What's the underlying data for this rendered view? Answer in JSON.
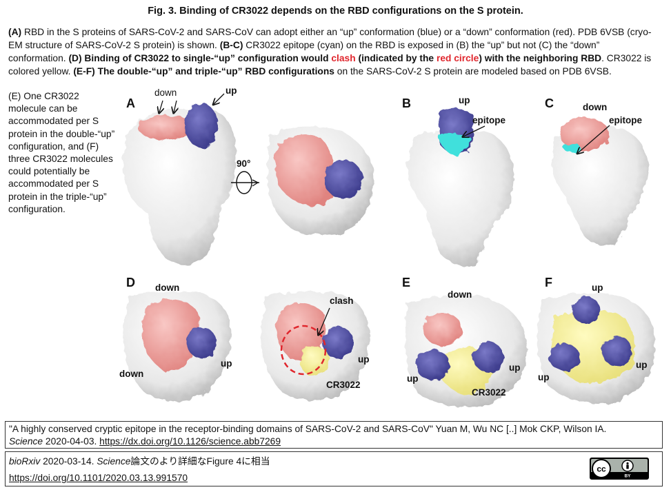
{
  "title": "Fig. 3. Binding of CR3022 depends on the RBD configurations on the S protein.",
  "caption": {
    "a_tag": "(A)",
    "a_text": " RBD in the S proteins of SARS-CoV-2 and SARS-CoV can adopt either an “up” conformation (blue) or a “down” conformation (red). PDB 6VSB (cryo-EM structure of SARS-CoV-2 S protein) is shown. ",
    "bc_tag": "(B-C)",
    "bc_text": " CR3022 epitope (cyan) on the RBD is exposed in (B) the “up” but not (C) the “down” conformation. ",
    "d_tag": "(D) Binding of CR3022 to single-“up” configuration would ",
    "d_clash": "clash",
    "d_mid": " (indicated by the ",
    "d_circle": "red circle",
    "d_end": ") with the neighboring RBD",
    "d_text": ". CR3022 is colored yellow. ",
    "ef_tag": "(E-F) The double-“up” and triple-“up” RBD configurations",
    "ef_text": " on the SARS-CoV-2 S protein are modeled based on PDB 6VSB."
  },
  "side_note": "(E) One CR3022 molecule can be accommodated per S protein in the double-“up” configuration, and (F) three CR3022 molecules could potentially be accommodated per S protein in the triple-“up” configuration.",
  "panels": {
    "A": {
      "label": "A",
      "down": "down",
      "up": "up",
      "rotation": "90°"
    },
    "B": {
      "label": "B",
      "up": "up",
      "epitope": "epitope"
    },
    "C": {
      "label": "C",
      "down": "down",
      "epitope": "epitope"
    },
    "D": {
      "label": "D",
      "down_top": "down",
      "down_bottom": "down",
      "up1": "up",
      "clash": "clash",
      "up2": "up",
      "cr3022": "CR3022"
    },
    "E": {
      "label": "E",
      "down": "down",
      "up_left": "up",
      "up_right": "up",
      "cr3022": "CR3022"
    },
    "F": {
      "label": "F",
      "up_top": "up",
      "up_left": "up",
      "up_right": "up"
    }
  },
  "citation": {
    "text": "\"A highly conserved cryptic epitope in the receptor-binding domains of SARS-CoV-2 and SARS-CoV\" Yuan M, Wu NC [..] Mok CKP, Wilson IA.",
    "journal": "Science",
    "date": " 2020-04-03. ",
    "doi": "https://dx.doi.org/10.1126/science.abb7269"
  },
  "footer": {
    "journal": "bioRxiv",
    "line1": " 2020-03-14. ",
    "journal2": "Science",
    "line1_rest": "論文のより詳細なFigure 4に相当",
    "doi": "https://doi.org/10.1101/2020.03.13.991570",
    "license_badge": "cc-by-badge"
  },
  "colors": {
    "protein": "#e6e6e6",
    "down_rbd": "#f0a3a0",
    "up_rbd": "#5b5aa8",
    "epitope": "#3fe0dc",
    "cr3022": "#f6f09a",
    "clash": "#e0262d"
  }
}
